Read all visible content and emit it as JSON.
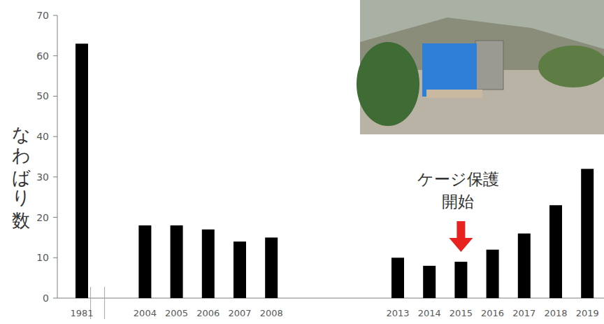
{
  "chart_data": {
    "type": "bar",
    "y_label": "なわばり数",
    "categories": [
      "1981",
      "2004",
      "2005",
      "2006",
      "2007",
      "2008",
      "2013",
      "2014",
      "2015",
      "2016",
      "2017",
      "2018",
      "2019"
    ],
    "values": [
      63,
      18,
      18,
      17,
      14,
      15,
      10,
      8,
      9,
      12,
      16,
      23,
      32
    ],
    "color": "#000000",
    "ylim": [
      0,
      70
    ],
    "yticks": [
      0,
      10,
      20,
      30,
      40,
      50,
      60,
      70
    ],
    "grid": false,
    "annotations": [
      {
        "text": "ケージ保護\n開始",
        "x": "2015"
      }
    ]
  }
}
